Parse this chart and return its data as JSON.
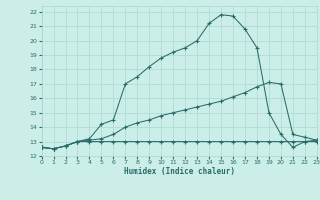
{
  "xlabel": "Humidex (Indice chaleur)",
  "bg_color": "#cceee8",
  "grid_color": "#aad8d2",
  "line_color": "#2a6b6b",
  "xlim": [
    0,
    23
  ],
  "ylim": [
    12,
    22.4
  ],
  "xticks": [
    0,
    1,
    2,
    3,
    4,
    5,
    6,
    7,
    8,
    9,
    10,
    11,
    12,
    13,
    14,
    15,
    16,
    17,
    18,
    19,
    20,
    21,
    22,
    23
  ],
  "yticks": [
    12,
    13,
    14,
    15,
    16,
    17,
    18,
    19,
    20,
    21,
    22
  ],
  "line1_x": [
    0,
    1,
    2,
    3,
    4,
    5,
    6,
    7,
    8,
    9,
    10,
    11,
    12,
    13,
    14,
    15,
    16,
    17,
    18,
    19,
    20,
    21,
    22,
    23
  ],
  "line1_y": [
    12.6,
    12.5,
    12.7,
    13.0,
    13.0,
    13.0,
    13.0,
    13.0,
    13.0,
    13.0,
    13.0,
    13.0,
    13.0,
    13.0,
    13.0,
    13.0,
    13.0,
    13.0,
    13.0,
    13.0,
    13.0,
    13.0,
    13.0,
    13.0
  ],
  "line2_x": [
    0,
    1,
    2,
    3,
    4,
    5,
    6,
    7,
    8,
    9,
    10,
    11,
    12,
    13,
    14,
    15,
    16,
    17,
    18,
    19,
    20,
    21,
    22,
    23
  ],
  "line2_y": [
    12.6,
    12.5,
    12.7,
    13.0,
    13.1,
    13.2,
    13.5,
    14.0,
    14.3,
    14.5,
    14.8,
    15.0,
    15.2,
    15.4,
    15.6,
    15.8,
    16.1,
    16.4,
    16.8,
    17.1,
    17.0,
    13.5,
    13.3,
    13.1
  ],
  "line3_x": [
    0,
    1,
    2,
    3,
    4,
    5,
    6,
    7,
    8,
    9,
    10,
    11,
    12,
    13,
    14,
    15,
    16,
    17,
    18,
    19,
    20,
    21,
    22,
    23
  ],
  "line3_y": [
    12.6,
    12.5,
    12.7,
    13.0,
    13.2,
    14.2,
    14.5,
    17.0,
    17.5,
    18.2,
    18.8,
    19.2,
    19.5,
    20.0,
    21.2,
    21.8,
    21.7,
    20.8,
    19.5,
    15.0,
    13.5,
    12.6,
    13.0,
    13.1
  ]
}
